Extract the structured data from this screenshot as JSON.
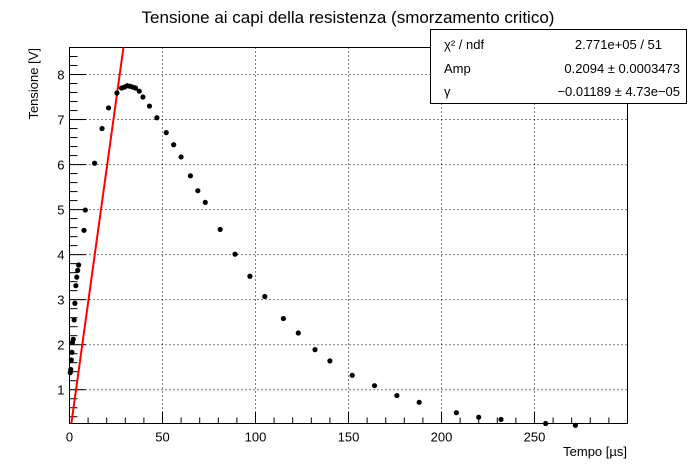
{
  "chart_data": {
    "type": "scatter",
    "title": "Tensione ai capi della resistenza (smorzamento critico)",
    "xlabel": "Tempo [µs]",
    "ylabel": "Tensione [V]",
    "xlim": [
      0,
      300
    ],
    "ylim": [
      0.25,
      8.6
    ],
    "x_ticks": [
      0,
      50,
      100,
      150,
      200,
      250
    ],
    "y_ticks": [
      1,
      2,
      3,
      4,
      5,
      6,
      7,
      8
    ],
    "grid": true,
    "series": [
      {
        "kind": "points",
        "color": "#000000",
        "points": [
          [
            0.4,
            1.38
          ],
          [
            0.7,
            1.45
          ],
          [
            1.0,
            1.66
          ],
          [
            1.3,
            1.83
          ],
          [
            1.6,
            2.05
          ],
          [
            2.0,
            2.12
          ],
          [
            2.5,
            2.55
          ],
          [
            2.9,
            2.92
          ],
          [
            3.4,
            3.31
          ],
          [
            3.9,
            3.5
          ],
          [
            4.4,
            3.65
          ],
          [
            4.9,
            3.77
          ],
          [
            7.8,
            4.54
          ],
          [
            8.5,
            4.99
          ],
          [
            13.5,
            6.03
          ],
          [
            17.5,
            6.8
          ],
          [
            21.0,
            7.26
          ],
          [
            25.5,
            7.59
          ],
          [
            28.0,
            7.7
          ],
          [
            29.5,
            7.72
          ],
          [
            31.0,
            7.75
          ],
          [
            32.5,
            7.74
          ],
          [
            34.0,
            7.72
          ],
          [
            35.5,
            7.7
          ],
          [
            37.5,
            7.63
          ],
          [
            39.5,
            7.5
          ],
          [
            43.0,
            7.3
          ],
          [
            47.0,
            7.04
          ],
          [
            52.0,
            6.71
          ],
          [
            56.0,
            6.44
          ],
          [
            60.0,
            6.17
          ],
          [
            65.0,
            5.75
          ],
          [
            69.0,
            5.42
          ],
          [
            73.0,
            5.16
          ],
          [
            81.0,
            4.56
          ],
          [
            89.0,
            4.01
          ],
          [
            97.0,
            3.52
          ],
          [
            105.0,
            3.07
          ],
          [
            115.0,
            2.58
          ],
          [
            123.0,
            2.26
          ],
          [
            132.0,
            1.89
          ],
          [
            140.0,
            1.64
          ],
          [
            152.0,
            1.32
          ],
          [
            164.0,
            1.09
          ],
          [
            176.0,
            0.87
          ],
          [
            188.0,
            0.72
          ],
          [
            208.0,
            0.49
          ],
          [
            220.0,
            0.39
          ],
          [
            232.0,
            0.34
          ],
          [
            256.0,
            0.25
          ],
          [
            272.0,
            0.21
          ]
        ]
      },
      {
        "kind": "fit-line",
        "color": "#ff0000",
        "x": [
          1,
          29
        ],
        "y": [
          0.25,
          8.6
        ]
      }
    ],
    "stats": {
      "rows": [
        {
          "label": "χ² / ndf",
          "value": "2.771e+05 / 51"
        },
        {
          "label": "Amp",
          "value": "0.2094  ± 0.0003473"
        },
        {
          "label": "γ",
          "value": "−0.01189  ± 4.73e−05"
        }
      ]
    }
  }
}
